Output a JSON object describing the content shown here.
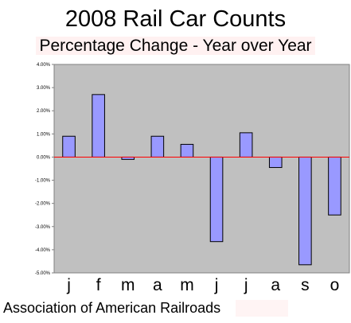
{
  "chart_data": {
    "type": "bar",
    "title": "2008 Rail Car Counts",
    "subtitle": "Percentage Change - Year over Year",
    "categories": [
      "j",
      "f",
      "m",
      "a",
      "m",
      "j",
      "j",
      "a",
      "s",
      "o"
    ],
    "values": [
      0.9,
      2.7,
      -0.1,
      0.9,
      0.55,
      -3.65,
      1.05,
      -0.45,
      -4.65,
      -2.5
    ],
    "ylim": [
      -5,
      4
    ],
    "yticks": [
      "4.00%",
      "3.00%",
      "2.00%",
      "1.00%",
      "0.00%",
      "-1.00%",
      "-2.00%",
      "-3.00%",
      "-4.00%",
      "-5.00%"
    ],
    "xlabel": "",
    "ylabel": "",
    "grid": false,
    "legend": "none",
    "colors": {
      "plot_bg": "#c0c0c0",
      "bar_fill": "#9999ff",
      "bar_stroke": "#000000",
      "zero_line": "#ff0000"
    }
  },
  "footer": {
    "source": "Association of American Railroads"
  }
}
